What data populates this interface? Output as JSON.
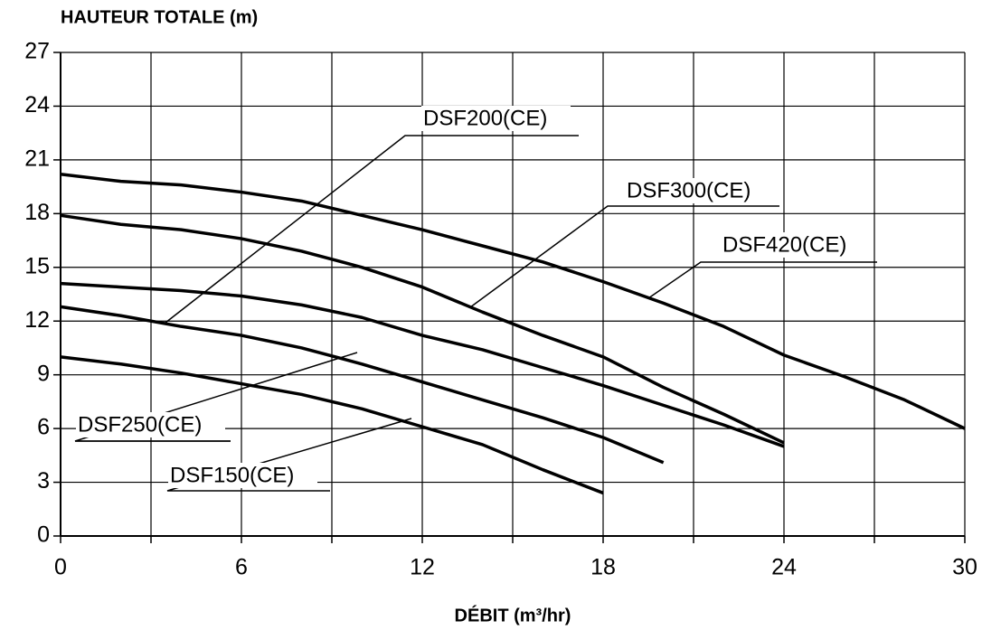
{
  "chart_data": {
    "type": "line",
    "y_label": "HAUTEUR TOTALE (m)",
    "x_label": "DÉBIT (m³/hr)",
    "xlim": [
      0,
      30
    ],
    "xticks": [
      0,
      6,
      12,
      18,
      24,
      30
    ],
    "xminor": [
      3,
      9,
      15,
      21,
      27
    ],
    "ylim": [
      0,
      27
    ],
    "yticks": [
      0,
      3,
      6,
      9,
      12,
      15,
      18,
      21,
      24,
      27
    ],
    "grid": true,
    "series": [
      {
        "name": "DSF420(CE)",
        "color": "#000000",
        "x": [
          0,
          2,
          4,
          6,
          8,
          10,
          12,
          14,
          16,
          18,
          20,
          22,
          24,
          26,
          28,
          30
        ],
        "values": [
          20.2,
          19.8,
          19.6,
          19.2,
          18.7,
          17.9,
          17.1,
          16.2,
          15.3,
          14.2,
          13.0,
          11.7,
          10.1,
          8.9,
          7.6,
          6.0
        ]
      },
      {
        "name": "DSF300(CE)",
        "color": "#000000",
        "x": [
          0,
          2,
          4,
          6,
          8,
          10,
          12,
          14,
          16,
          18,
          20,
          22,
          24
        ],
        "values": [
          17.9,
          17.4,
          17.1,
          16.6,
          15.9,
          15.0,
          13.9,
          12.5,
          11.2,
          10.0,
          8.3,
          6.8,
          5.2
        ]
      },
      {
        "name": "DSF200(CE)",
        "color": "#000000",
        "x": [
          0,
          2,
          4,
          6,
          8,
          10,
          12,
          14,
          16,
          18,
          20,
          22,
          24
        ],
        "values": [
          14.1,
          13.9,
          13.7,
          13.4,
          12.9,
          12.2,
          11.2,
          10.4,
          9.4,
          8.4,
          7.3,
          6.2,
          5.0
        ]
      },
      {
        "name": "DSF250(CE)",
        "color": "#000000",
        "x": [
          0,
          2,
          4,
          6,
          8,
          10,
          12,
          14,
          16,
          18,
          20
        ],
        "values": [
          12.8,
          12.3,
          11.7,
          11.2,
          10.5,
          9.6,
          8.6,
          7.6,
          6.6,
          5.5,
          4.1
        ]
      },
      {
        "name": "DSF150(CE)",
        "color": "#000000",
        "x": [
          0,
          2,
          4,
          6,
          8,
          10,
          12,
          14,
          16,
          18
        ],
        "values": [
          10.0,
          9.6,
          9.1,
          8.5,
          7.9,
          7.1,
          6.1,
          5.1,
          3.7,
          2.4
        ]
      }
    ]
  }
}
